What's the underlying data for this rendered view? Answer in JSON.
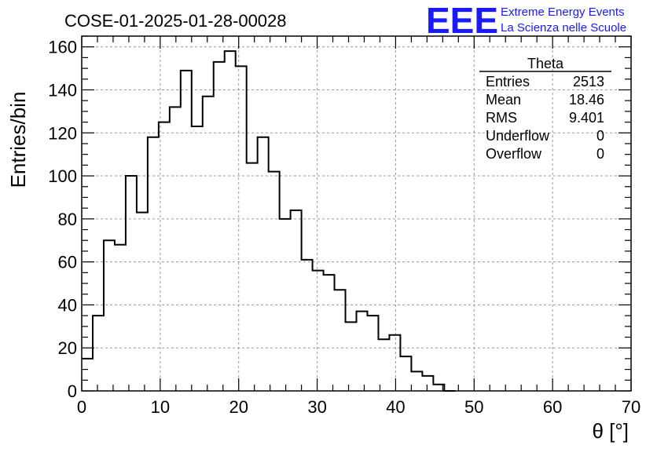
{
  "chart_data": {
    "type": "histogram",
    "title": "COSE-01-2025-01-28-00028",
    "xlabel": "θ [°]",
    "ylabel": "Entries/bin",
    "xlim": [
      0,
      70
    ],
    "ylim": [
      0,
      165
    ],
    "x_ticks": [
      0,
      10,
      20,
      30,
      40,
      50,
      60,
      70
    ],
    "y_ticks": [
      0,
      20,
      40,
      60,
      80,
      100,
      120,
      140,
      160
    ],
    "grid": true,
    "bin_edges": [
      0,
      1.4,
      2.8,
      4.2,
      5.6,
      7.0,
      8.4,
      9.8,
      11.2,
      12.6,
      14.0,
      15.4,
      16.8,
      18.2,
      19.6,
      21.0,
      22.4,
      23.8,
      25.2,
      26.6,
      28.0,
      29.4,
      30.8,
      32.2,
      33.6,
      35.0,
      36.4,
      37.8,
      39.2,
      40.6,
      42.0,
      43.4,
      44.8,
      46.2,
      47.6
    ],
    "values": [
      15,
      35,
      70,
      68,
      100,
      83,
      118,
      125,
      132,
      149,
      123,
      137,
      153,
      158,
      151,
      106,
      118,
      102,
      80,
      84,
      61,
      56,
      54,
      47,
      32,
      37,
      35,
      24,
      26,
      16,
      9,
      7,
      3,
      0
    ],
    "stats_box": {
      "title": "Theta",
      "rows": [
        {
          "label": "Entries",
          "value": "2513"
        },
        {
          "label": "Mean",
          "value": "18.46"
        },
        {
          "label": "RMS",
          "value": "9.401"
        },
        {
          "label": "Underflow",
          "value": "0"
        },
        {
          "label": "Overflow",
          "value": "0"
        }
      ]
    }
  },
  "logo": {
    "mark": "EEE",
    "line1": "Extreme Energy Events",
    "line2": "La Scienza nelle Scuole",
    "color": "#1a1aff"
  }
}
